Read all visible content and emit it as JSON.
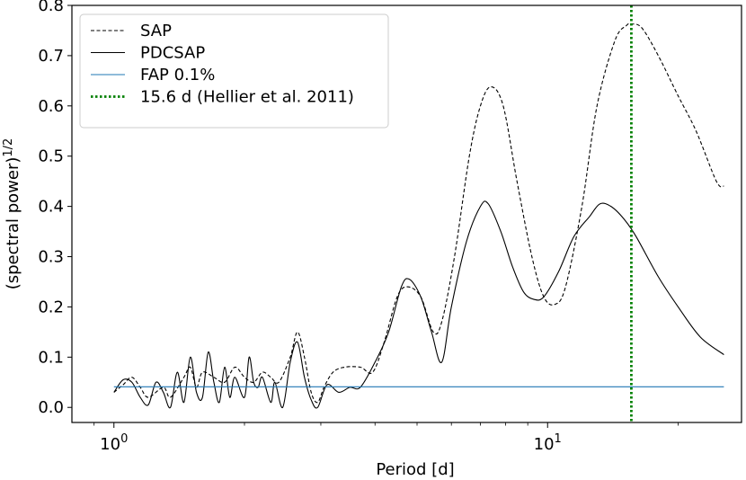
{
  "chart_data": {
    "type": "line",
    "xlabel": "Period [d]",
    "ylabel_main": "(spectral power)",
    "ylabel_sup": "1/2",
    "xscale": "log",
    "xlim": [
      0.8,
      28
    ],
    "ylim": [
      -0.03,
      0.8
    ],
    "x_ticks": [
      1,
      10
    ],
    "x_tick_labels": [
      {
        "base": "10",
        "exp": "0"
      },
      {
        "base": "10",
        "exp": "1"
      }
    ],
    "y_ticks": [
      0.0,
      0.1,
      0.2,
      0.3,
      0.4,
      0.5,
      0.6,
      0.7,
      0.8
    ],
    "y_tick_labels": [
      "0.0",
      "0.1",
      "0.2",
      "0.3",
      "0.4",
      "0.5",
      "0.6",
      "0.7",
      "0.8"
    ],
    "legend_position": "top-left",
    "series": [
      {
        "name": "SAP",
        "color": "#000000",
        "style": "dashed",
        "points": [
          [
            1.0,
            0.03
          ],
          [
            1.05,
            0.045
          ],
          [
            1.1,
            0.06
          ],
          [
            1.15,
            0.04
          ],
          [
            1.2,
            0.02
          ],
          [
            1.3,
            0.04
          ],
          [
            1.35,
            0.02
          ],
          [
            1.45,
            0.06
          ],
          [
            1.5,
            0.08
          ],
          [
            1.55,
            0.04
          ],
          [
            1.6,
            0.07
          ],
          [
            1.7,
            0.06
          ],
          [
            1.8,
            0.05
          ],
          [
            1.9,
            0.08
          ],
          [
            2.0,
            0.06
          ],
          [
            2.1,
            0.05
          ],
          [
            2.2,
            0.07
          ],
          [
            2.3,
            0.06
          ],
          [
            2.4,
            0.05
          ],
          [
            2.55,
            0.1
          ],
          [
            2.65,
            0.15
          ],
          [
            2.75,
            0.1
          ],
          [
            2.85,
            0.03
          ],
          [
            2.95,
            0.01
          ],
          [
            3.05,
            0.04
          ],
          [
            3.2,
            0.07
          ],
          [
            3.4,
            0.08
          ],
          [
            3.7,
            0.08
          ],
          [
            3.95,
            0.07
          ],
          [
            4.2,
            0.13
          ],
          [
            4.5,
            0.22
          ],
          [
            4.75,
            0.24
          ],
          [
            5.1,
            0.22
          ],
          [
            5.45,
            0.15
          ],
          [
            5.7,
            0.17
          ],
          [
            6.1,
            0.3
          ],
          [
            6.6,
            0.5
          ],
          [
            7.0,
            0.6
          ],
          [
            7.4,
            0.638
          ],
          [
            7.9,
            0.6
          ],
          [
            8.5,
            0.45
          ],
          [
            9.2,
            0.3
          ],
          [
            9.8,
            0.22
          ],
          [
            10.4,
            0.205
          ],
          [
            11.0,
            0.24
          ],
          [
            12.0,
            0.4
          ],
          [
            13.0,
            0.6
          ],
          [
            14.3,
            0.73
          ],
          [
            15.2,
            0.76
          ],
          [
            15.6,
            0.763
          ],
          [
            16.5,
            0.755
          ],
          [
            18.0,
            0.7
          ],
          [
            20.0,
            0.62
          ],
          [
            22.0,
            0.55
          ],
          [
            24.5,
            0.45
          ],
          [
            25.5,
            0.44
          ]
        ]
      },
      {
        "name": "PDCSAP",
        "color": "#000000",
        "style": "solid",
        "points": [
          [
            1.0,
            0.03
          ],
          [
            1.05,
            0.055
          ],
          [
            1.1,
            0.05
          ],
          [
            1.15,
            0.02
          ],
          [
            1.2,
            0.005
          ],
          [
            1.25,
            0.05
          ],
          [
            1.3,
            0.03
          ],
          [
            1.35,
            0.0
          ],
          [
            1.4,
            0.07
          ],
          [
            1.45,
            0.01
          ],
          [
            1.5,
            0.1
          ],
          [
            1.55,
            0.03
          ],
          [
            1.6,
            0.02
          ],
          [
            1.65,
            0.11
          ],
          [
            1.7,
            0.05
          ],
          [
            1.75,
            0.01
          ],
          [
            1.8,
            0.08
          ],
          [
            1.85,
            0.02
          ],
          [
            1.9,
            0.06
          ],
          [
            2.0,
            0.02
          ],
          [
            2.05,
            0.1
          ],
          [
            2.1,
            0.05
          ],
          [
            2.15,
            0.04
          ],
          [
            2.2,
            0.06
          ],
          [
            2.3,
            0.01
          ],
          [
            2.35,
            0.05
          ],
          [
            2.45,
            0.0
          ],
          [
            2.55,
            0.09
          ],
          [
            2.65,
            0.13
          ],
          [
            2.75,
            0.06
          ],
          [
            2.85,
            0.015
          ],
          [
            2.95,
            0.0
          ],
          [
            3.1,
            0.045
          ],
          [
            3.3,
            0.03
          ],
          [
            3.5,
            0.04
          ],
          [
            3.7,
            0.04
          ],
          [
            4.0,
            0.09
          ],
          [
            4.3,
            0.15
          ],
          [
            4.6,
            0.24
          ],
          [
            4.8,
            0.255
          ],
          [
            5.1,
            0.22
          ],
          [
            5.4,
            0.15
          ],
          [
            5.7,
            0.09
          ],
          [
            6.0,
            0.2
          ],
          [
            6.5,
            0.33
          ],
          [
            7.0,
            0.4
          ],
          [
            7.3,
            0.405
          ],
          [
            7.8,
            0.35
          ],
          [
            8.3,
            0.28
          ],
          [
            8.8,
            0.23
          ],
          [
            9.3,
            0.215
          ],
          [
            9.8,
            0.22
          ],
          [
            10.6,
            0.27
          ],
          [
            11.5,
            0.34
          ],
          [
            12.5,
            0.38
          ],
          [
            13.2,
            0.405
          ],
          [
            14.0,
            0.4
          ],
          [
            15.0,
            0.375
          ],
          [
            16.0,
            0.34
          ],
          [
            18.0,
            0.26
          ],
          [
            20.0,
            0.2
          ],
          [
            22.5,
            0.14
          ],
          [
            25.5,
            0.105
          ]
        ]
      },
      {
        "name": "FAP 0.1%",
        "color": "#1f77b4",
        "style": "solid",
        "points": [
          [
            1.0,
            0.041
          ],
          [
            25.5,
            0.041
          ]
        ]
      }
    ],
    "vlines": [
      {
        "name": "15.6 d (Hellier et al. 2011)",
        "x": 15.6,
        "color": "#008000",
        "style": "dotted"
      }
    ]
  }
}
